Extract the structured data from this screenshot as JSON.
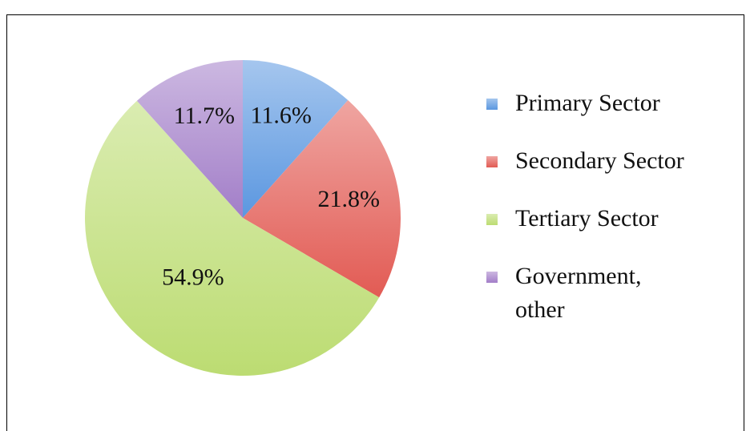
{
  "chart_data": {
    "type": "pie",
    "categories": [
      "Primary Sector",
      "Secondary Sector",
      "Tertiary Sector",
      "Government, other"
    ],
    "values": [
      11.6,
      21.8,
      54.9,
      11.7
    ],
    "value_labels": [
      "11.6%",
      "21.8%",
      "54.9%",
      "11.7%"
    ],
    "colors": [
      "#5b97e0",
      "#e25b54",
      "#bcdc72",
      "#a27ec8"
    ],
    "legend": "right"
  }
}
